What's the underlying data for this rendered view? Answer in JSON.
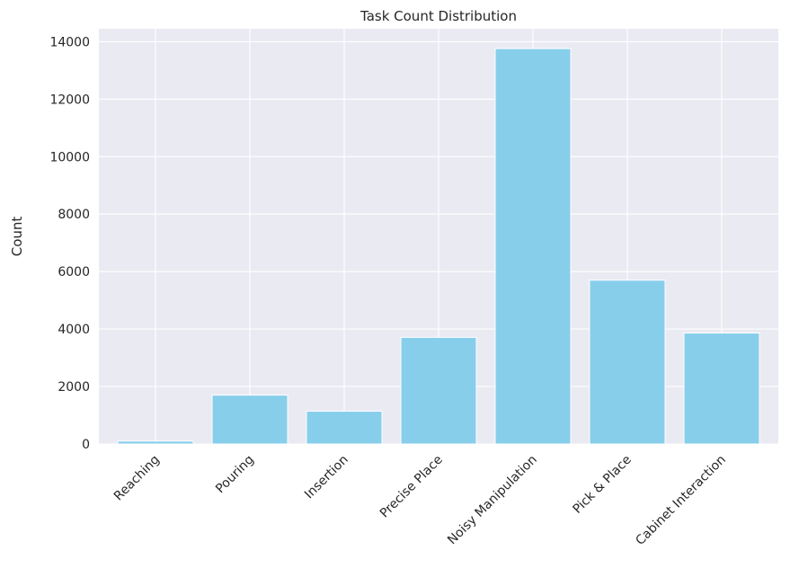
{
  "chart_data": {
    "type": "bar",
    "title": "Task Count Distribution",
    "xlabel": "",
    "ylabel": "Count",
    "categories": [
      "Reaching",
      "Pouring",
      "Insertion",
      "Precise Place",
      "Noisy Manipulation",
      "Pick & Place",
      "Cabinet Interaction"
    ],
    "values": [
      100,
      1700,
      1140,
      3710,
      13760,
      5700,
      3860
    ],
    "ylim": [
      0,
      14450
    ],
    "yticks": [
      "0",
      "2000",
      "4000",
      "6000",
      "8000",
      "10000",
      "12000",
      "14000"
    ],
    "grid": true,
    "bar_color": "#87ceeb",
    "background_color": "#eaeaf2",
    "grid_color": "#ffffff"
  }
}
